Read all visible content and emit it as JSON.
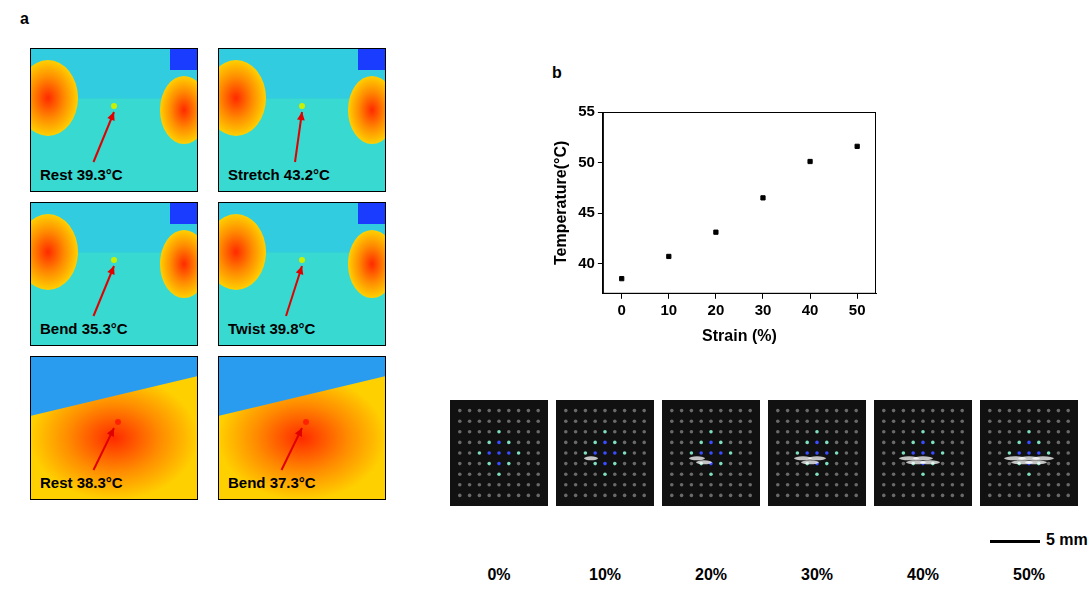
{
  "panel_labels": [
    "a",
    "b"
  ],
  "thermal_images": [
    "Rest 39.3°C",
    "Stretch 43.2°C",
    "Bend 35.3°C",
    "Twist 39.8°C",
    "Rest 38.3°C",
    "Bend 37.3°C"
  ],
  "chart_data": {
    "type": "scatter",
    "x_label": "Strain (%)",
    "y_label": "Temperature(°C)",
    "x": [
      0,
      10,
      20,
      30,
      40,
      50
    ],
    "values": [
      38.5,
      40.7,
      43.1,
      46.5,
      50.1,
      51.6
    ],
    "color": "#000000",
    "marker": "square",
    "xlim": [
      -4,
      54
    ],
    "xticks": [
      0,
      10,
      20,
      30,
      40,
      50
    ],
    "ylim": [
      37,
      55
    ],
    "yticks": [
      40,
      45,
      50,
      55
    ],
    "grid": false
  },
  "strain_photos": {
    "labels": [
      "0%",
      "10%",
      "20%",
      "30%",
      "40%",
      "50%"
    ],
    "scale_bar": "5 mm"
  }
}
